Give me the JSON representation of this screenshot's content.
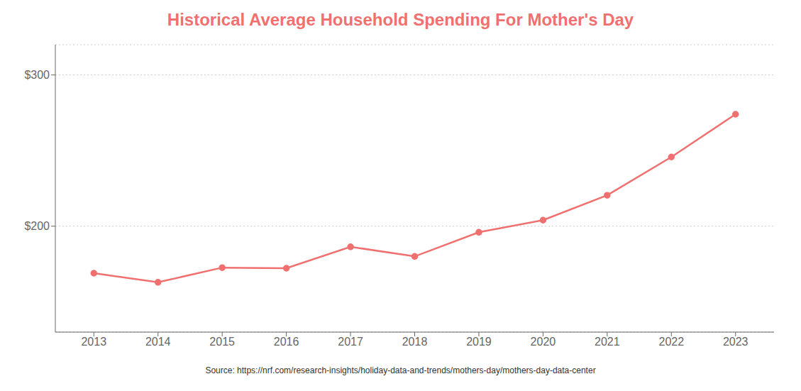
{
  "chart_data": {
    "type": "line",
    "title": "Historical Average Household Spending For Mother's Day",
    "annotations": [
      "Source: https://nrf.com/research-insights/holiday-data-and-trends/mothers-day/mothers-day-data-center"
    ],
    "x": [
      2013,
      2014,
      2015,
      2016,
      2017,
      2018,
      2019,
      2020,
      2021,
      2022,
      2023
    ],
    "values": [
      168.94,
      162.94,
      172.63,
      172.22,
      186.39,
      180.04,
      196.0,
      204.0,
      220.48,
      245.76,
      274.02
    ],
    "color": "#f07070",
    "marker": "circle",
    "xlim": [
      2012.4,
      2023.6
    ],
    "xticks": [
      2013,
      2014,
      2015,
      2016,
      2017,
      2018,
      2019,
      2020,
      2021,
      2022,
      2023
    ],
    "ylim": [
      130,
      320
    ],
    "yticks": [
      {
        "value": 200,
        "label": "$200"
      },
      {
        "value": 300,
        "label": "$300"
      }
    ],
    "grid": true
  }
}
